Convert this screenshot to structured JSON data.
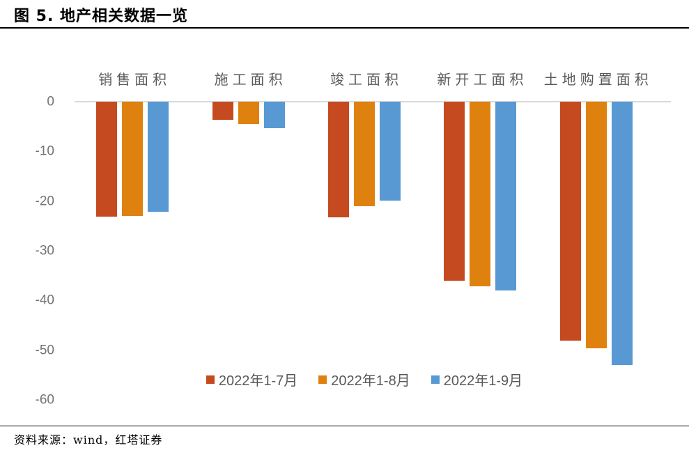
{
  "title": "图 5. 地产相关数据一览",
  "footer": {
    "source_label": "资料来源：wind，红塔证券"
  },
  "colors": {
    "series_1": "#C64A20",
    "series_2": "#DF810E",
    "series_3": "#5999D3",
    "axis_line": "#D9D9D9",
    "tick_text": "#737373",
    "category_text": "#595959",
    "legend_text": "#595959",
    "divider": "#000000"
  },
  "chart_data": {
    "type": "bar",
    "title": "图 5. 地产相关数据一览",
    "categories": [
      "销售面积",
      "施工面积",
      "竣工面积",
      "新开工面积",
      "土地购置面积"
    ],
    "series": [
      {
        "name": "2022年1-7月",
        "color": "#C64A20",
        "values": [
          -23.1,
          -3.7,
          -23.3,
          -36.1,
          -48.1
        ]
      },
      {
        "name": "2022年1-8月",
        "color": "#DF810E",
        "values": [
          -23.0,
          -4.5,
          -21.1,
          -37.2,
          -49.7
        ]
      },
      {
        "name": "2022年1-9月",
        "color": "#5999D3",
        "values": [
          -22.2,
          -5.3,
          -19.9,
          -38.0,
          -53.0
        ]
      }
    ],
    "xlabel": "",
    "ylabel": "",
    "ylim": [
      -60,
      0
    ],
    "yticks": [
      0,
      -10,
      -20,
      -30,
      -40,
      -50,
      -60
    ],
    "grid": false,
    "legend_position": "bottom",
    "source": "资料来源：wind，红塔证券"
  }
}
